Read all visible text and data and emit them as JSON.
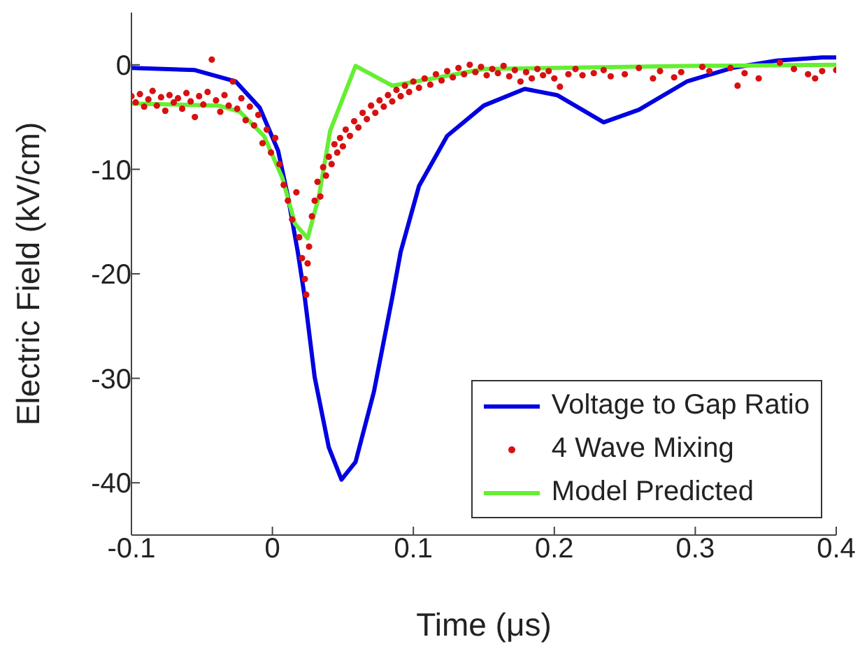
{
  "chart_data": {
    "type": "line",
    "xlabel": "Time (μs)",
    "ylabel": "Electric Field (kV/cm)",
    "xlim": [
      -0.1,
      0.4
    ],
    "xticks": [
      -0.1,
      0,
      0.1,
      0.2,
      0.3,
      0.4
    ],
    "ylim": [
      -45,
      5
    ],
    "yticks": [
      -40,
      -30,
      -20,
      -10,
      0
    ],
    "grid": false,
    "legend": "bottom right",
    "series": [
      {
        "name": "Voltage to Gap Ratio",
        "color": "#0000e0",
        "marker": "none",
        "line_style": "solid",
        "x": [
          -0.1,
          -0.055,
          -0.026,
          -0.009,
          0.004,
          0.011,
          0.018,
          0.023,
          0.03,
          0.04,
          0.049,
          0.059,
          0.072,
          0.085,
          0.091,
          0.104,
          0.124,
          0.15,
          0.179,
          0.202,
          0.235,
          0.26,
          0.294,
          0.326,
          0.358,
          0.39,
          0.4
        ],
        "values": [
          -0.3,
          -0.5,
          -1.6,
          -4.1,
          -8.2,
          -12.6,
          -17.9,
          -22.3,
          -29.9,
          -36.6,
          -39.7,
          -38,
          -31.3,
          -22.3,
          -17.9,
          -11.6,
          -6.8,
          -3.9,
          -2.3,
          -2.9,
          -5.5,
          -4.3,
          -1.6,
          -0.3,
          0.4,
          0.7,
          0.7
        ]
      },
      {
        "type": "scatter",
        "name": "4 Wave Mixing",
        "color": "#d81010",
        "marker": "circle",
        "x": [
          -0.1,
          -0.097,
          -0.094,
          -0.091,
          -0.088,
          -0.085,
          -0.082,
          -0.079,
          -0.076,
          -0.073,
          -0.07,
          -0.067,
          -0.064,
          -0.061,
          -0.058,
          -0.055,
          -0.052,
          -0.049,
          -0.046,
          -0.043,
          -0.04,
          -0.037,
          -0.034,
          -0.031,
          -0.028,
          -0.025,
          -0.022,
          -0.019,
          -0.016,
          -0.013,
          -0.01,
          -0.007,
          -0.004,
          -0.001,
          0.002,
          0.005,
          0.008,
          0.011,
          0.014,
          0.017,
          0.019,
          0.021,
          0.023,
          0.024,
          0.025,
          0.026,
          0.028,
          0.03,
          0.032,
          0.034,
          0.036,
          0.038,
          0.04,
          0.042,
          0.044,
          0.046,
          0.048,
          0.05,
          0.052,
          0.055,
          0.058,
          0.061,
          0.064,
          0.067,
          0.07,
          0.073,
          0.076,
          0.079,
          0.082,
          0.085,
          0.088,
          0.091,
          0.094,
          0.097,
          0.1,
          0.104,
          0.108,
          0.112,
          0.116,
          0.12,
          0.124,
          0.128,
          0.132,
          0.136,
          0.14,
          0.144,
          0.148,
          0.152,
          0.156,
          0.16,
          0.164,
          0.168,
          0.172,
          0.176,
          0.18,
          0.184,
          0.188,
          0.192,
          0.196,
          0.2,
          0.204,
          0.21,
          0.215,
          0.22,
          0.228,
          0.235,
          0.24,
          0.25,
          0.26,
          0.27,
          0.275,
          0.285,
          0.29,
          0.305,
          0.31,
          0.325,
          0.33,
          0.335,
          0.345,
          0.36,
          0.37,
          0.38,
          0.385,
          0.39,
          0.4
        ],
        "values": [
          -3.0,
          -3.6,
          -2.8,
          -4.0,
          -3.3,
          -2.5,
          -3.9,
          -3.1,
          -4.4,
          -2.9,
          -3.6,
          -3.2,
          -4.2,
          -2.7,
          -3.5,
          -5.0,
          -3.0,
          -3.8,
          -2.6,
          0.5,
          -3.4,
          -4.5,
          -2.9,
          -3.9,
          -1.6,
          -4.2,
          -3.2,
          -5.3,
          -4.0,
          -5.8,
          -4.8,
          -7.5,
          -6.2,
          -8.4,
          -7.0,
          -9.5,
          -11.5,
          -13.0,
          -14.8,
          -12.2,
          -16.5,
          -18.5,
          -20.5,
          -22.0,
          -19.0,
          -17.4,
          -14.5,
          -13.0,
          -11.2,
          -12.6,
          -9.8,
          -10.6,
          -8.8,
          -9.5,
          -7.6,
          -8.4,
          -7.0,
          -7.8,
          -6.2,
          -6.8,
          -5.4,
          -6.0,
          -4.6,
          -5.2,
          -3.9,
          -4.6,
          -3.4,
          -4.0,
          -2.9,
          -3.5,
          -2.4,
          -3.0,
          -2.0,
          -2.6,
          -1.6,
          -2.2,
          -1.3,
          -1.9,
          -0.9,
          -1.5,
          -0.6,
          -1.2,
          -0.3,
          -0.9,
          0.0,
          -0.7,
          -0.2,
          -1.0,
          -0.4,
          -0.8,
          -0.1,
          -1.1,
          -0.5,
          -1.6,
          -0.7,
          -1.3,
          -0.4,
          -1.0,
          -0.6,
          -1.3,
          -2.1,
          -0.9,
          -0.4,
          -1.0,
          -0.8,
          -0.5,
          -1.1,
          -0.9,
          -0.3,
          -1.3,
          -0.6,
          -1.2,
          -0.7,
          -0.2,
          -0.6,
          -0.3,
          -2.0,
          -0.8,
          -1.3,
          0.2,
          -0.4,
          -0.9,
          -1.3,
          -0.6,
          -0.5
        ]
      },
      {
        "name": "Model Predicted",
        "color": "#66ee33",
        "marker": "none",
        "line_style": "solid",
        "x": [
          -0.1,
          -0.038,
          -0.023,
          -0.006,
          0.007,
          0.016,
          0.025,
          0.033,
          0.041,
          0.059,
          0.085,
          0.118,
          0.15,
          0.2,
          0.3,
          0.4
        ],
        "values": [
          -3.7,
          -3.9,
          -4.5,
          -6.8,
          -10.8,
          -15.2,
          -16.6,
          -12.6,
          -6.3,
          -0.1,
          -2.0,
          -1.2,
          -0.4,
          -0.3,
          -0.1,
          0
        ]
      }
    ]
  }
}
